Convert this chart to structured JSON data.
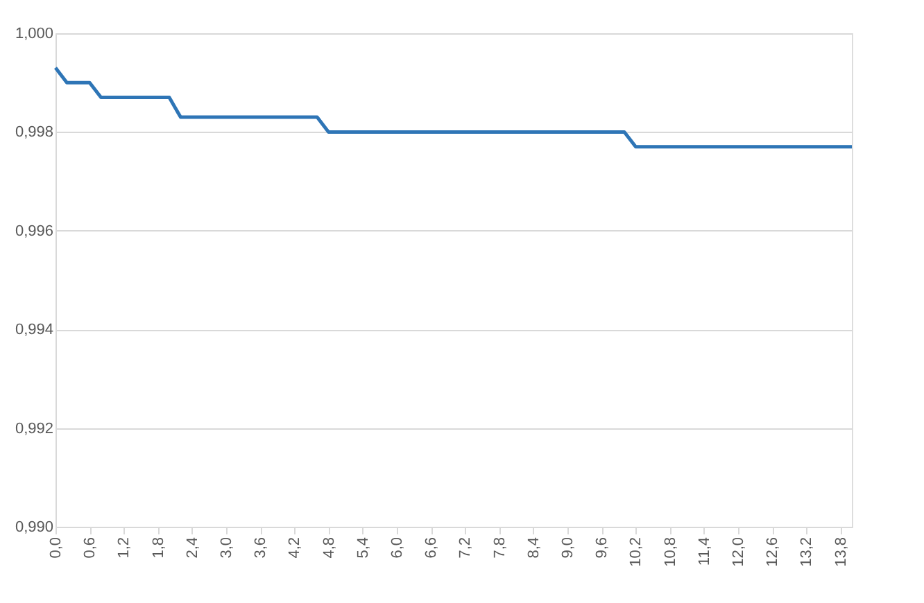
{
  "chart_data": {
    "type": "line",
    "x": [
      0,
      0.2,
      0.6,
      0.8,
      2.0,
      2.2,
      4.6,
      4.8,
      10.0,
      10.2,
      14.0
    ],
    "series": [
      {
        "color": "#2e75b6",
        "values": [
          0.9993,
          0.999,
          0.999,
          0.9987,
          0.9987,
          0.9983,
          0.9983,
          0.998,
          0.998,
          0.9977,
          0.9977
        ]
      }
    ],
    "xlim": [
      0,
      14.0
    ],
    "xticks": [
      {
        "value": 0,
        "label": "0,0"
      },
      {
        "value": 0.6,
        "label": "0,6"
      },
      {
        "value": 1.2,
        "label": "1,2"
      },
      {
        "value": 1.8,
        "label": "1,8"
      },
      {
        "value": 2.4,
        "label": "2,4"
      },
      {
        "value": 3.0,
        "label": "3,0"
      },
      {
        "value": 3.6,
        "label": "3,6"
      },
      {
        "value": 4.2,
        "label": "4,2"
      },
      {
        "value": 4.8,
        "label": "4,8"
      },
      {
        "value": 5.4,
        "label": "5,4"
      },
      {
        "value": 6.0,
        "label": "6,0"
      },
      {
        "value": 6.6,
        "label": "6,6"
      },
      {
        "value": 7.2,
        "label": "7,2"
      },
      {
        "value": 7.8,
        "label": "7,8"
      },
      {
        "value": 8.4,
        "label": "8,4"
      },
      {
        "value": 9.0,
        "label": "9,0"
      },
      {
        "value": 9.6,
        "label": "9,6"
      },
      {
        "value": 10.2,
        "label": "10,2"
      },
      {
        "value": 10.8,
        "label": "10,8"
      },
      {
        "value": 11.4,
        "label": "11,4"
      },
      {
        "value": 12.0,
        "label": "12,0"
      },
      {
        "value": 12.6,
        "label": "12,6"
      },
      {
        "value": 13.2,
        "label": "13,2"
      },
      {
        "value": 13.8,
        "label": "13,8"
      }
    ],
    "ylim": [
      0.99,
      1.0
    ],
    "yticks": [
      {
        "value": 0.99,
        "label": "0,990"
      },
      {
        "value": 0.992,
        "label": "0,992"
      },
      {
        "value": 0.994,
        "label": "0,994"
      },
      {
        "value": 0.996,
        "label": "0,996"
      },
      {
        "value": 0.998,
        "label": "0,998"
      },
      {
        "value": 1.0,
        "label": "1,000"
      }
    ],
    "grid": "y",
    "legend": false,
    "line_style": "solid",
    "marker": "none"
  }
}
